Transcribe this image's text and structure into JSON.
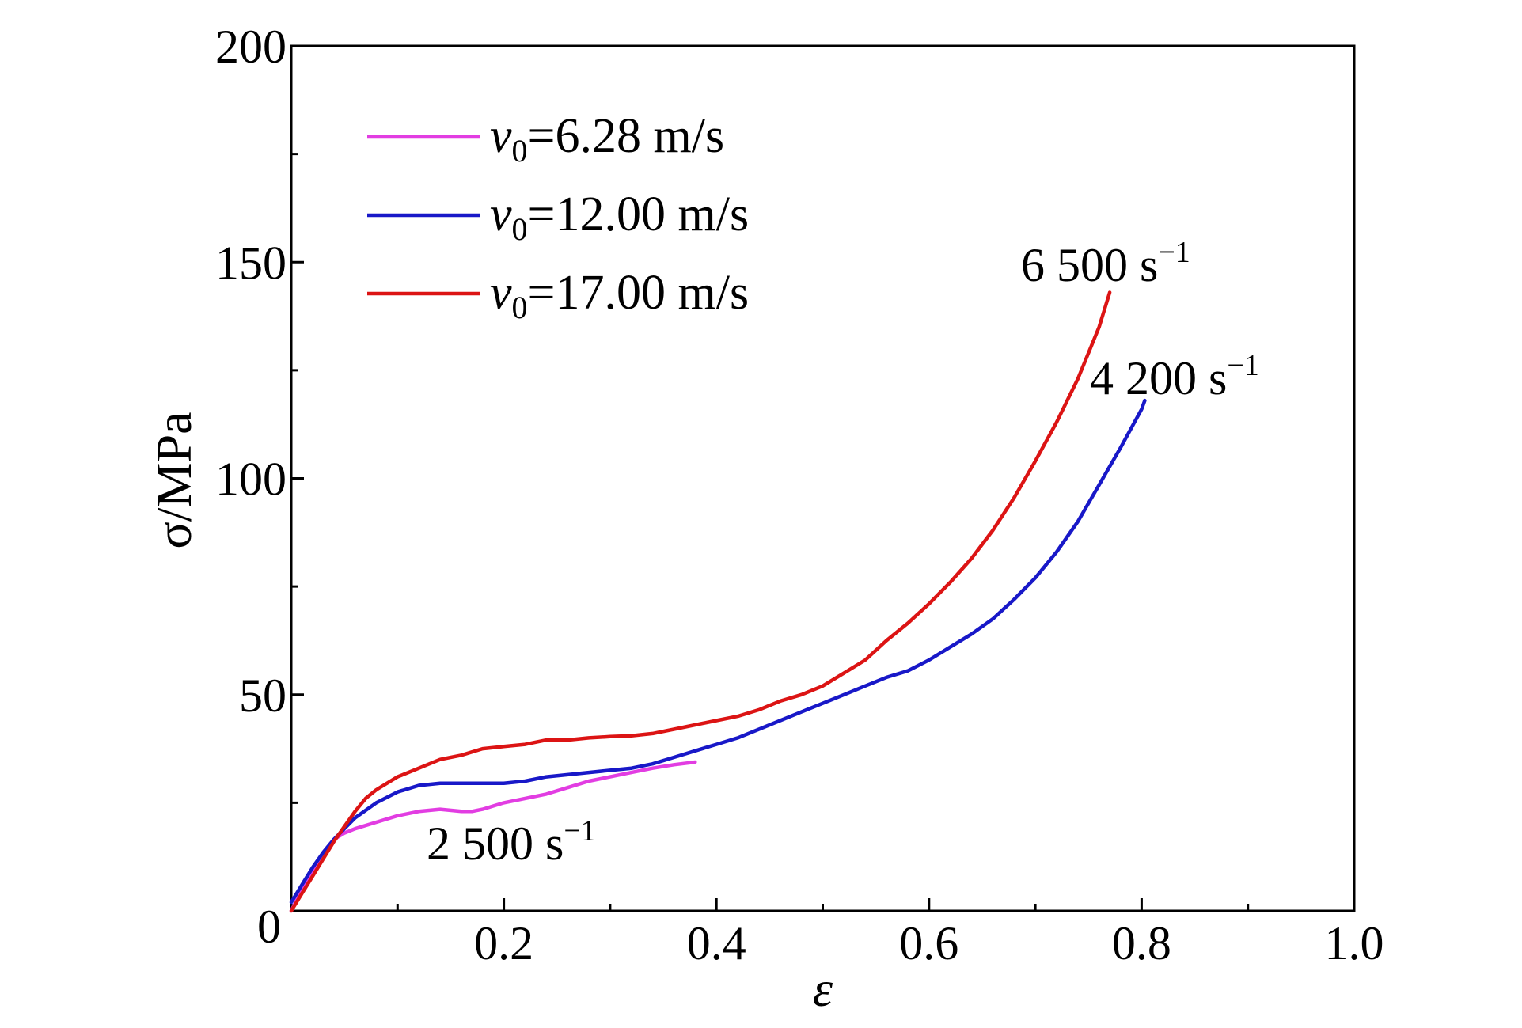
{
  "chart_data": {
    "type": "line",
    "xlabel": "ε",
    "ylabel": "σ/MPa",
    "xlim": [
      0,
      1.0
    ],
    "ylim": [
      0,
      200
    ],
    "x_ticks": [
      0.2,
      0.4,
      0.6,
      0.8,
      1.0
    ],
    "x_tick_labels": [
      "0.2",
      "0.4",
      "0.6",
      "0.8",
      "1.0"
    ],
    "x_minor_tick_step": 0.1,
    "y_ticks": [
      0,
      50,
      100,
      150,
      200
    ],
    "y_tick_labels": [
      "0",
      "50",
      "100",
      "150",
      "200"
    ],
    "y_minor_tick_step": 25,
    "grid": false,
    "legend_position": "top-left",
    "series": [
      {
        "name": "v0=6.28 m/s",
        "name_parts": {
          "var": "v",
          "sub": "0",
          "rest": "=6.28 m/s"
        },
        "color": "#e23de2",
        "x": [
          0,
          0.01,
          0.02,
          0.03,
          0.04,
          0.05,
          0.06,
          0.08,
          0.1,
          0.12,
          0.14,
          0.16,
          0.17,
          0.18,
          0.2,
          0.22,
          0.24,
          0.26,
          0.28,
          0.3,
          0.32,
          0.34,
          0.36,
          0.38
        ],
        "y": [
          0,
          5,
          9.5,
          13.5,
          16.5,
          18,
          19,
          20.5,
          22,
          23,
          23.5,
          23,
          23,
          23.5,
          25,
          26,
          27,
          28.5,
          30,
          31,
          32,
          33,
          33.8,
          34.4
        ]
      },
      {
        "name": "v0=12.00 m/s",
        "name_parts": {
          "var": "v",
          "sub": "0",
          "rest": "=12.00 m/s"
        },
        "color": "#1818c8",
        "x": [
          0,
          0.01,
          0.02,
          0.03,
          0.04,
          0.05,
          0.06,
          0.08,
          0.1,
          0.12,
          0.14,
          0.16,
          0.18,
          0.2,
          0.22,
          0.24,
          0.26,
          0.28,
          0.3,
          0.32,
          0.34,
          0.36,
          0.38,
          0.4,
          0.42,
          0.44,
          0.46,
          0.48,
          0.5,
          0.52,
          0.54,
          0.56,
          0.58,
          0.6,
          0.62,
          0.64,
          0.66,
          0.68,
          0.7,
          0.72,
          0.74,
          0.76,
          0.78,
          0.8,
          0.803
        ],
        "y": [
          2,
          6,
          10,
          13.5,
          16.5,
          19,
          21.5,
          25,
          27.5,
          29,
          29.5,
          29.5,
          29.5,
          29.5,
          30,
          31,
          31.5,
          32,
          32.5,
          33,
          34,
          35.5,
          37,
          38.5,
          40,
          42,
          44,
          46,
          48,
          50,
          52,
          54,
          55.5,
          58,
          61,
          64,
          67.5,
          72,
          77,
          83,
          90,
          98.5,
          107,
          116,
          118
        ]
      },
      {
        "name": "v0=17.00 m/s",
        "name_parts": {
          "var": "v",
          "sub": "0",
          "rest": "=17.00 m/s"
        },
        "color": "#dc1414",
        "x": [
          0,
          0.01,
          0.02,
          0.03,
          0.04,
          0.05,
          0.06,
          0.07,
          0.08,
          0.1,
          0.12,
          0.14,
          0.16,
          0.18,
          0.2,
          0.22,
          0.24,
          0.26,
          0.28,
          0.3,
          0.32,
          0.34,
          0.36,
          0.38,
          0.4,
          0.42,
          0.44,
          0.46,
          0.48,
          0.5,
          0.52,
          0.54,
          0.56,
          0.58,
          0.6,
          0.62,
          0.64,
          0.66,
          0.68,
          0.7,
          0.72,
          0.74,
          0.76,
          0.77
        ],
        "y": [
          0,
          4,
          8,
          12,
          16,
          19.5,
          23,
          26,
          28,
          31,
          33,
          35,
          36,
          37.5,
          38,
          38.5,
          39.5,
          39.5,
          40,
          40.3,
          40.5,
          41,
          42,
          43,
          44,
          45,
          46.5,
          48.5,
          50,
          52,
          55,
          58,
          62.5,
          66.5,
          71,
          76,
          81.5,
          88,
          95.5,
          104,
          113,
          123,
          135,
          143
        ]
      }
    ],
    "annotations": [
      {
        "text": "6 500 s",
        "sup": "−1",
        "series": 2
      },
      {
        "text": "4 200 s",
        "sup": "−1",
        "series": 1
      },
      {
        "text": "2 500 s",
        "sup": "−1",
        "series": 0
      }
    ]
  }
}
